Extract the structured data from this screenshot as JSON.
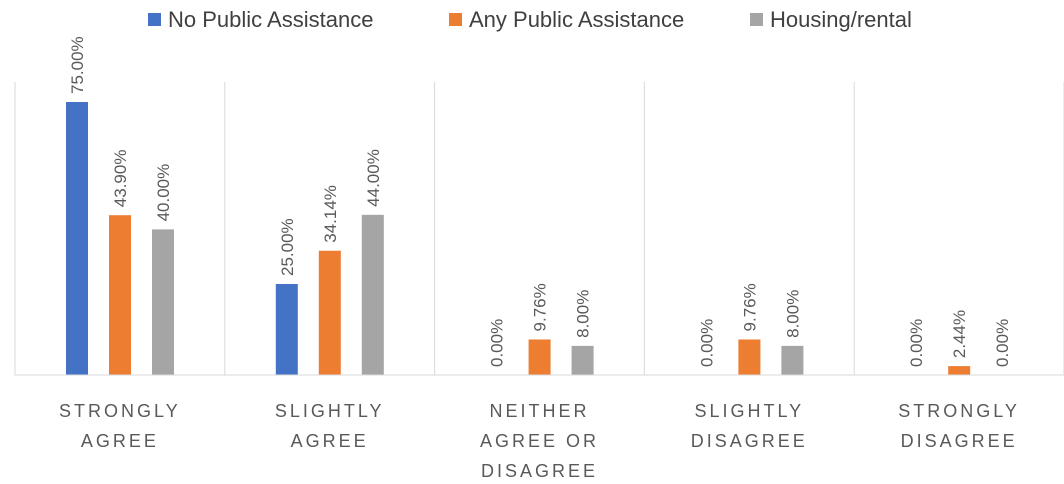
{
  "chart_data": {
    "type": "bar",
    "title": "",
    "xlabel": "",
    "ylabel": "",
    "ylim": [
      0,
      80
    ],
    "grid": false,
    "legend_position": "top",
    "categories": [
      [
        "STRONGLY",
        "AGREE"
      ],
      [
        "SLIGHTLY",
        "AGREE"
      ],
      [
        "NEITHER",
        "AGREE OR",
        "DISAGREE"
      ],
      [
        "SLIGHTLY",
        "DISAGREE"
      ],
      [
        "STRONGLY",
        "DISAGREE"
      ]
    ],
    "series": [
      {
        "name": "No Public Assistance",
        "color": "#4472C4",
        "values": [
          75.0,
          25.0,
          0.0,
          0.0,
          0.0
        ],
        "labels": [
          "75.00%",
          "25.00%",
          "0.00%",
          "0.00%",
          "0.00%"
        ]
      },
      {
        "name": "Any Public Assistance",
        "color": "#ED7D31",
        "values": [
          43.9,
          34.14,
          9.76,
          9.76,
          2.44
        ],
        "labels": [
          "43.90%",
          "34.14%",
          "9.76%",
          "9.76%",
          "2.44%"
        ]
      },
      {
        "name": "Housing/rental",
        "color": "#A5A5A5",
        "values": [
          40.0,
          44.0,
          8.0,
          8.0,
          0.0
        ],
        "labels": [
          "40.00%",
          "44.00%",
          "8.00%",
          "8.00%",
          "0.00%"
        ]
      }
    ]
  }
}
